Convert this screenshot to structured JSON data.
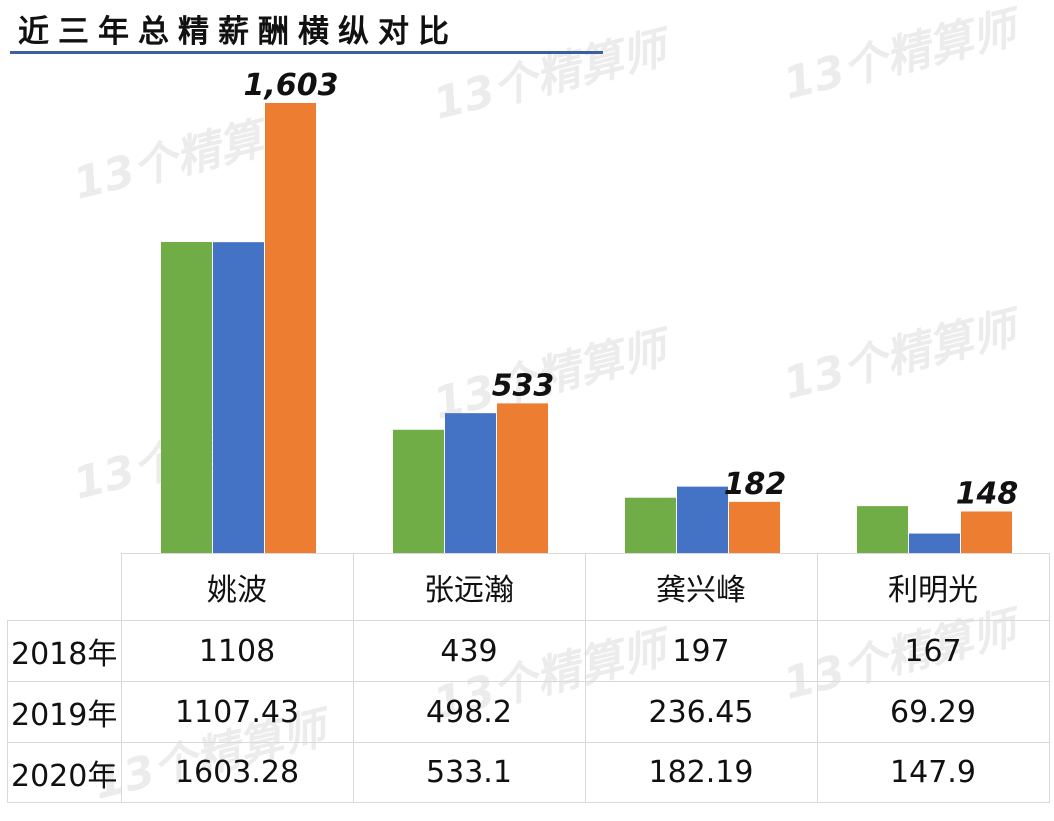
{
  "chart_data": {
    "type": "bar",
    "title": "近三年总精薪酬横纵对比",
    "categories": [
      "姚波",
      "张远瀚",
      "龚兴峰",
      "利明光"
    ],
    "series": [
      {
        "name": "2018年",
        "color": "#70ad47",
        "values": [
          1108,
          439,
          197,
          167
        ]
      },
      {
        "name": "2019年",
        "color": "#4472c4",
        "values": [
          1107.43,
          498.2,
          236.45,
          69.29
        ]
      },
      {
        "name": "2020年",
        "color": "#ed7d31",
        "values": [
          1603.28,
          533.1,
          182.19,
          147.9
        ]
      }
    ],
    "data_labels": [
      "1,603",
      "533",
      "182",
      "148"
    ],
    "table_values": [
      [
        "1108",
        "439",
        "197",
        "167"
      ],
      [
        "1107.43",
        "498.2",
        "236.45",
        "69.29"
      ],
      [
        "1603.28",
        "533.1",
        "182.19",
        "147.9"
      ]
    ],
    "ylim": [
      0,
      1603.28
    ],
    "grid": false,
    "legend": "data table"
  },
  "watermark": "13个精算师"
}
